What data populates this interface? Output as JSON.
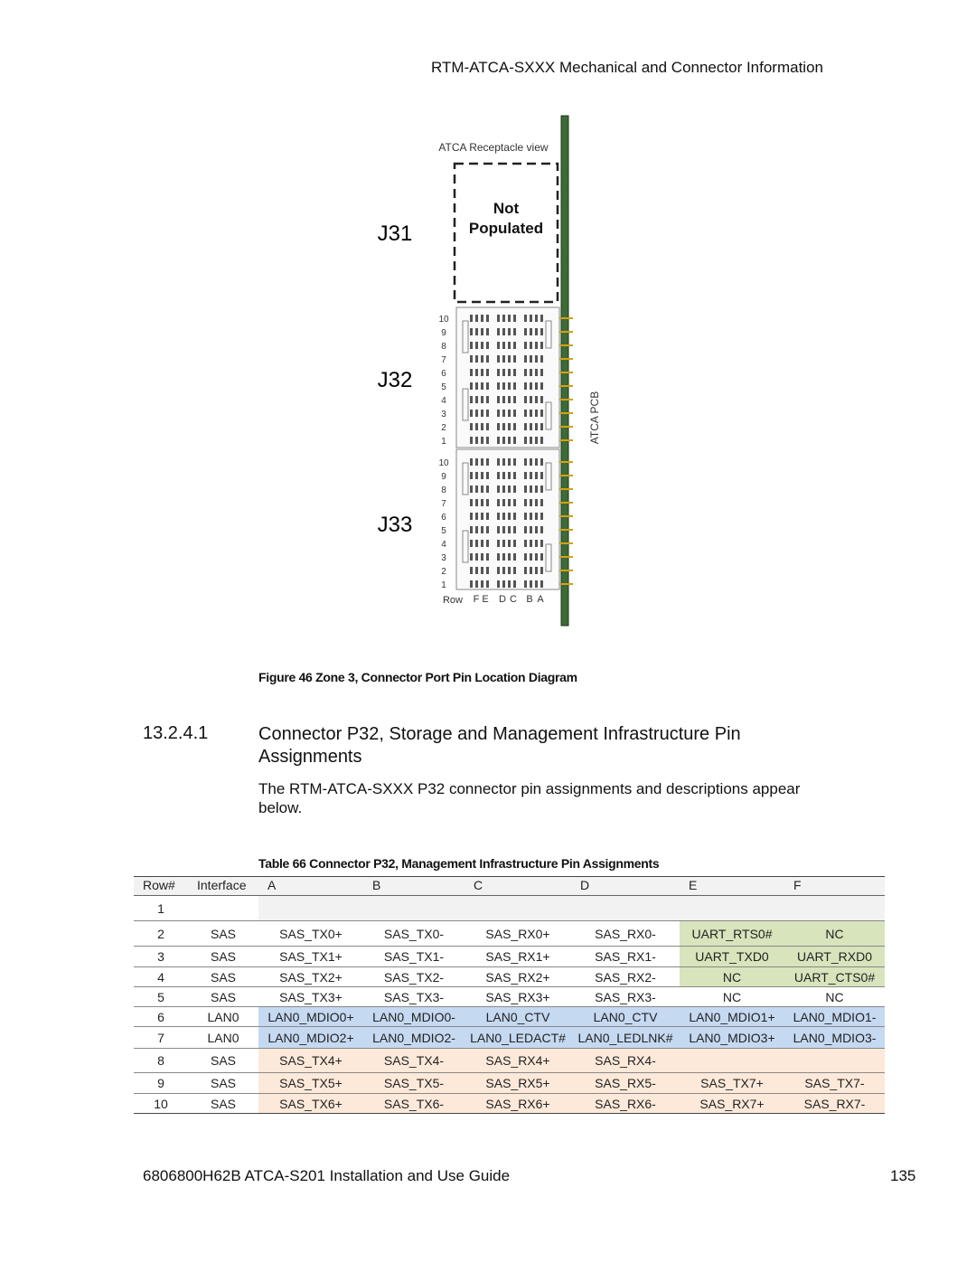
{
  "header": {
    "title": "RTM-ATCA-SXXX Mechanical and Connector Information"
  },
  "figure": {
    "view_label": "ATCA Receptacle view",
    "not_populated": "Not Populated",
    "connectors": [
      "J31",
      "J32",
      "J33"
    ],
    "pin_rows": [
      "10",
      "9",
      "8",
      "7",
      "6",
      "5",
      "4",
      "3",
      "2",
      "1"
    ],
    "row_label": "Row",
    "columns": [
      "F",
      "E",
      "D",
      "C",
      "B",
      "A"
    ],
    "pcb_label": "ATCA PCB",
    "caption": "Figure 46 Zone 3, Connector Port Pin Location Diagram"
  },
  "section": {
    "number": "13.2.4.1",
    "title": "Connector P32, Storage and Management Infrastructure Pin Assignments",
    "paragraph": "The RTM-ATCA-SXXX P32 connector pin assignments and descriptions appear below."
  },
  "table": {
    "caption": "Table 66 Connector P32, Management Infrastructure Pin Assignments",
    "header": [
      "Row#",
      "Interface",
      "A",
      "B",
      "C",
      "D",
      "E",
      "F"
    ],
    "rows": [
      [
        "1",
        null,
        null,
        null,
        null,
        null,
        null,
        null
      ],
      [
        "2",
        "SAS",
        "SAS_TX0+",
        "SAS_TX0-",
        "SAS_RX0+",
        "SAS_RX0-",
        "UART_RTS0#",
        "NC"
      ],
      [
        "3",
        "SAS",
        "SAS_TX1+",
        "SAS_TX1-",
        "SAS_RX1+",
        "SAS_RX1-",
        "UART_TXD0",
        "UART_RXD0"
      ],
      [
        "4",
        "SAS",
        "SAS_TX2+",
        "SAS_TX2-",
        "SAS_RX2+",
        "SAS_RX2-",
        "NC",
        "UART_CTS0#"
      ],
      [
        "5",
        "SAS",
        "SAS_TX3+",
        "SAS_TX3-",
        "SAS_RX3+",
        "SAS_RX3-",
        "NC",
        "NC"
      ],
      [
        "6",
        "LAN0",
        "LAN0_MDIO0+",
        "LAN0_MDIO0-",
        "LAN0_CTV",
        "LAN0_CTV",
        "LAN0_MDIO1+",
        "LAN0_MDIO1-"
      ],
      [
        "7",
        "LAN0",
        "LAN0_MDIO2+",
        "LAN0_MDIO2-",
        "LAN0_LEDACT#",
        "LAN0_LEDLNK#",
        "LAN0_MDIO3+",
        "LAN0_MDIO3-"
      ],
      [
        "8",
        "SAS",
        "SAS_TX4+",
        "SAS_TX4-",
        "SAS_RX4+",
        "SAS_RX4-",
        null,
        null
      ],
      [
        "9",
        "SAS",
        "SAS_TX5+",
        "SAS_TX5-",
        "SAS_RX5+",
        "SAS_RX5-",
        "SAS_TX7+",
        "SAS_TX7-"
      ],
      [
        "10",
        "SAS",
        "SAS_TX6+",
        "SAS_TX6-",
        "SAS_RX6+",
        "SAS_RX6-",
        "SAS_RX7+",
        "SAS_RX7-"
      ]
    ],
    "row_colors": [
      [
        "#ffffff",
        "#ffffff",
        "#f2f2f2",
        "#f2f2f2",
        "#f2f2f2",
        "#f2f2f2",
        "#f2f2f2",
        "#f2f2f2"
      ],
      [
        "#ffffff",
        "#ffffff",
        "#ffffff",
        "#ffffff",
        "#ffffff",
        "#ffffff",
        "#d8e4bc",
        "#d8e4bc"
      ],
      [
        "#ffffff",
        "#ffffff",
        "#ffffff",
        "#ffffff",
        "#ffffff",
        "#ffffff",
        "#d8e4bc",
        "#d8e4bc"
      ],
      [
        "#ffffff",
        "#ffffff",
        "#ffffff",
        "#ffffff",
        "#ffffff",
        "#ffffff",
        "#d8e4bc",
        "#d8e4bc"
      ],
      [
        "#ffffff",
        "#ffffff",
        "#ffffff",
        "#ffffff",
        "#ffffff",
        "#ffffff",
        "#ffffff",
        "#ffffff"
      ],
      [
        "#ffffff",
        "#ffffff",
        "#c5d9f1",
        "#c5d9f1",
        "#c5d9f1",
        "#c5d9f1",
        "#c5d9f1",
        "#c5d9f1"
      ],
      [
        "#ffffff",
        "#ffffff",
        "#c5d9f1",
        "#c5d9f1",
        "#c5d9f1",
        "#c5d9f1",
        "#c5d9f1",
        "#c5d9f1"
      ],
      [
        "#ffffff",
        "#ffffff",
        "#fde9d9",
        "#fde9d9",
        "#fde9d9",
        "#fde9d9",
        "#fde9d9",
        "#fde9d9"
      ],
      [
        "#ffffff",
        "#ffffff",
        "#fde9d9",
        "#fde9d9",
        "#fde9d9",
        "#fde9d9",
        "#fde9d9",
        "#fde9d9"
      ],
      [
        "#ffffff",
        "#ffffff",
        "#fde9d9",
        "#fde9d9",
        "#fde9d9",
        "#fde9d9",
        "#fde9d9",
        "#fde9d9"
      ]
    ]
  },
  "footer": {
    "doc": "6806800H62B ATCA-S201 Installation and Use Guide",
    "page": "135"
  }
}
